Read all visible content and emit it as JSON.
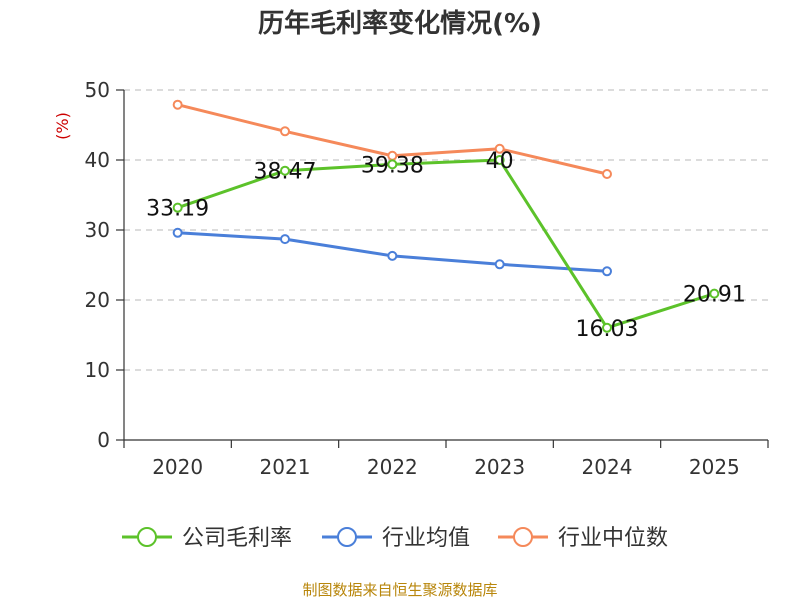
{
  "chart_data": {
    "type": "line",
    "title": "历年毛利率变化情况(%)",
    "ylabel": "(%)",
    "xlabel": "",
    "categories": [
      "2020",
      "2021",
      "2022",
      "2023",
      "2024",
      "2025"
    ],
    "ylim": [
      0,
      50
    ],
    "yticks": [
      0,
      10,
      20,
      30,
      40,
      50
    ],
    "grid": true,
    "legend_position": "bottom",
    "series": [
      {
        "name": "公司毛利率",
        "color": "#5cc22a",
        "values": [
          33.19,
          38.47,
          39.38,
          40,
          16.03,
          20.91
        ],
        "labels": [
          "33.19",
          "38.47",
          "39.38",
          "40",
          "16.03",
          "20.91"
        ]
      },
      {
        "name": "行业均值",
        "color": "#4a7fd9",
        "values": [
          29.6,
          28.7,
          26.3,
          25.1,
          24.1,
          null
        ]
      },
      {
        "name": "行业中位数",
        "color": "#f5895a",
        "values": [
          47.9,
          44.1,
          40.6,
          41.6,
          38.0,
          null
        ]
      }
    ]
  },
  "footer": {
    "source": "制图数据来自恒生聚源数据库"
  }
}
